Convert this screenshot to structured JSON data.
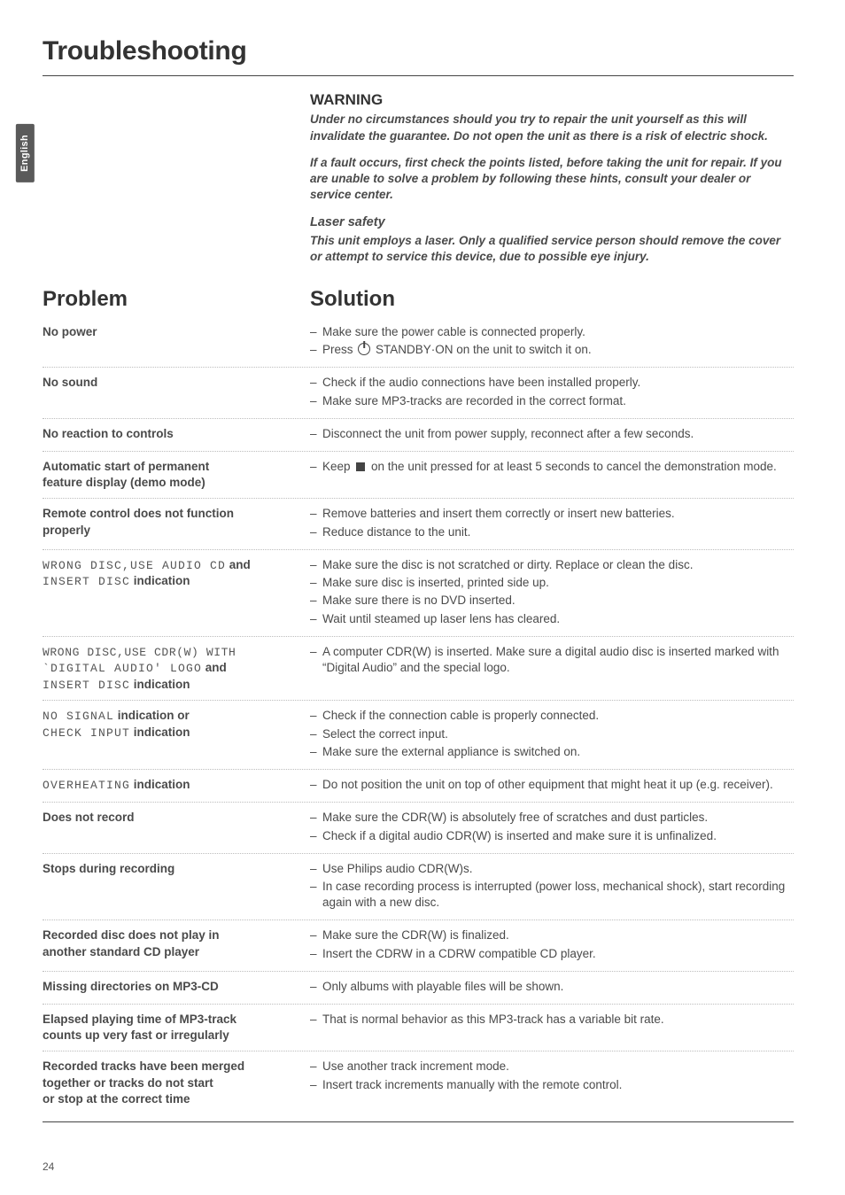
{
  "meta": {
    "language_tab": "English",
    "page_number": "24"
  },
  "heading": "Troubleshooting",
  "intro": {
    "warning_heading": "WARNING",
    "warning_para1": "Under no circumstances should you try to repair the unit yourself as this will invalidate the guarantee. Do not open the unit as there is a risk of electric shock.",
    "warning_para2": "If a fault occurs, first check the points listed, before taking the unit for repair. If you are unable to solve a problem by following these hints, consult your dealer or service center.",
    "laser_heading": "Laser safety",
    "laser_para": "This unit employs a laser. Only a qualified service person should remove the cover or attempt to service this device, due to possible eye injury."
  },
  "columns": {
    "problem": "Problem",
    "solution": "Solution"
  },
  "rows": [
    {
      "problem": {
        "bold": "No power"
      },
      "solutions": [
        {
          "text": "Make sure the power cable is connected properly."
        },
        {
          "prefix": "Press ",
          "icon": "power",
          "suffix": " STANDBY·ON on the unit to switch it on."
        }
      ]
    },
    {
      "problem": {
        "bold": "No sound"
      },
      "solutions": [
        {
          "text": "Check if the audio connections have been installed properly."
        },
        {
          "text": "Make sure MP3-tracks are recorded in the correct format."
        }
      ]
    },
    {
      "problem": {
        "bold": "No reaction to controls"
      },
      "solutions": [
        {
          "text": "Disconnect the unit from power supply, reconnect after a few seconds."
        }
      ]
    },
    {
      "problem": {
        "bold_lines": [
          "Automatic start of permanent",
          "feature display (demo mode)"
        ]
      },
      "solutions": [
        {
          "prefix": "Keep ",
          "icon": "stop",
          "suffix": " on the unit pressed for at least 5 seconds to cancel the demonstration mode."
        }
      ]
    },
    {
      "problem": {
        "bold_lines": [
          "Remote control does not function",
          "properly"
        ]
      },
      "solutions": [
        {
          "text": "Remove batteries and insert them correctly or insert new batteries."
        },
        {
          "text": "Reduce distance to the unit."
        }
      ]
    },
    {
      "problem": {
        "mixed": [
          [
            {
              "lcd": "WRONG DISC,USE AUDIO CD"
            },
            {
              "bold": " and"
            }
          ],
          [
            {
              "lcd": "INSERT DISC"
            },
            {
              "bold": " indication"
            }
          ]
        ]
      },
      "solutions": [
        {
          "text": "Make sure the disc is not scratched or dirty. Replace or clean the disc."
        },
        {
          "text": "Make sure disc is inserted, printed side up."
        },
        {
          "text": "Make sure there is no DVD inserted."
        },
        {
          "text": "Wait until steamed up laser lens has cleared."
        }
      ]
    },
    {
      "problem": {
        "mixed": [
          [
            {
              "lcd": "WRONG DISC,USE CDR(W) WITH"
            }
          ],
          [
            {
              "lcd": "`DIGITAL AUDIO' LOGO"
            },
            {
              "bold": " and"
            }
          ],
          [
            {
              "lcd": "INSERT DISC"
            },
            {
              "bold": " indication"
            }
          ]
        ]
      },
      "solutions": [
        {
          "text": "A computer CDR(W) is inserted. Make sure a digital audio disc is inserted marked with “Digital Audio” and the special logo."
        }
      ]
    },
    {
      "problem": {
        "mixed": [
          [
            {
              "lcd": "NO SIGNAL"
            },
            {
              "bold": " indication or"
            }
          ],
          [
            {
              "lcd": "CHECK INPUT"
            },
            {
              "bold": " indication"
            }
          ]
        ]
      },
      "solutions": [
        {
          "text": "Check if the connection cable is properly connected."
        },
        {
          "text": "Select the correct input."
        },
        {
          "text": "Make sure the external appliance is switched on."
        }
      ]
    },
    {
      "problem": {
        "mixed": [
          [
            {
              "lcd": "OVERHEATING"
            },
            {
              "bold": " indication"
            }
          ]
        ]
      },
      "solutions": [
        {
          "text": "Do not position the unit on top of other equipment that might heat it up (e.g. receiver)."
        }
      ]
    },
    {
      "problem": {
        "bold": "Does not record"
      },
      "solutions": [
        {
          "text": "Make sure the CDR(W) is absolutely free of scratches and dust particles."
        },
        {
          "text": "Check if a digital audio CDR(W) is inserted and make sure it is unfinalized."
        }
      ]
    },
    {
      "problem": {
        "bold": "Stops during recording"
      },
      "solutions": [
        {
          "text": "Use Philips audio CDR(W)s."
        },
        {
          "text": "In case recording process is interrupted (power loss, mechanical shock), start recording again with a new disc."
        }
      ]
    },
    {
      "problem": {
        "bold_lines": [
          "Recorded disc does not play in",
          "another standard CD player"
        ]
      },
      "solutions": [
        {
          "text": "Make sure the CDR(W) is finalized."
        },
        {
          "text": "Insert the CDRW in a CDRW compatible CD player."
        }
      ]
    },
    {
      "problem": {
        "bold": "Missing directories on MP3-CD"
      },
      "solutions": [
        {
          "text": "Only albums with playable files will be shown."
        }
      ]
    },
    {
      "problem": {
        "bold_lines": [
          "Elapsed playing time of MP3-track",
          "counts up very fast or irregularly"
        ]
      },
      "solutions": [
        {
          "text": "That is normal behavior as this MP3-track has a variable bit rate."
        }
      ]
    },
    {
      "problem": {
        "bold_lines": [
          "Recorded tracks have been merged",
          "together or tracks do not start",
          "or stop at the correct time"
        ]
      },
      "solutions": [
        {
          "text": "Use another track increment mode."
        },
        {
          "text": "Insert track increments manually with the remote control."
        }
      ]
    }
  ]
}
